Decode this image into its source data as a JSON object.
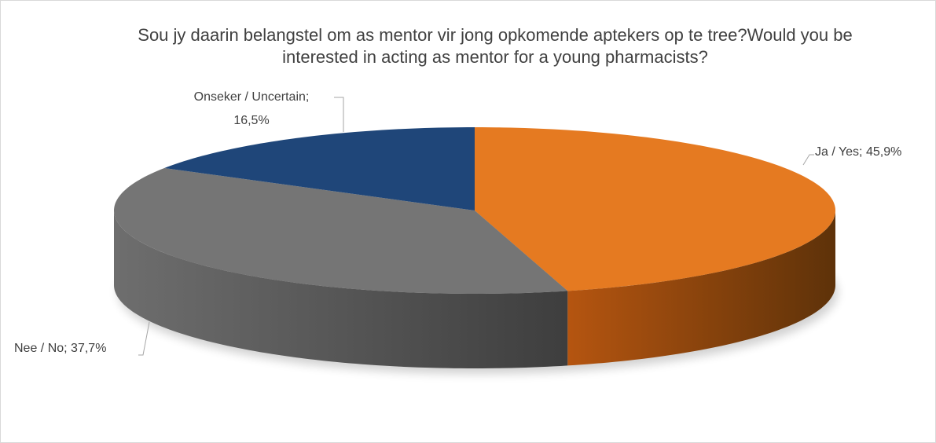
{
  "chart_data": {
    "type": "pie3d",
    "title": "Sou jy daarin belangstel om as mentor vir jong opkomende aptekers op te tree?Would you be interested in acting as mentor for a young pharmacists?",
    "categories": [
      "Ja / Yes",
      "Nee / No",
      "Onseker / Uncertain"
    ],
    "values": [
      45.9,
      37.7,
      16.5
    ],
    "value_labels": [
      "45,9%",
      "37,7%",
      "16,5%"
    ],
    "label_separator": ";",
    "colors": [
      "#e57a21",
      "#757575",
      "#1f4679"
    ]
  }
}
